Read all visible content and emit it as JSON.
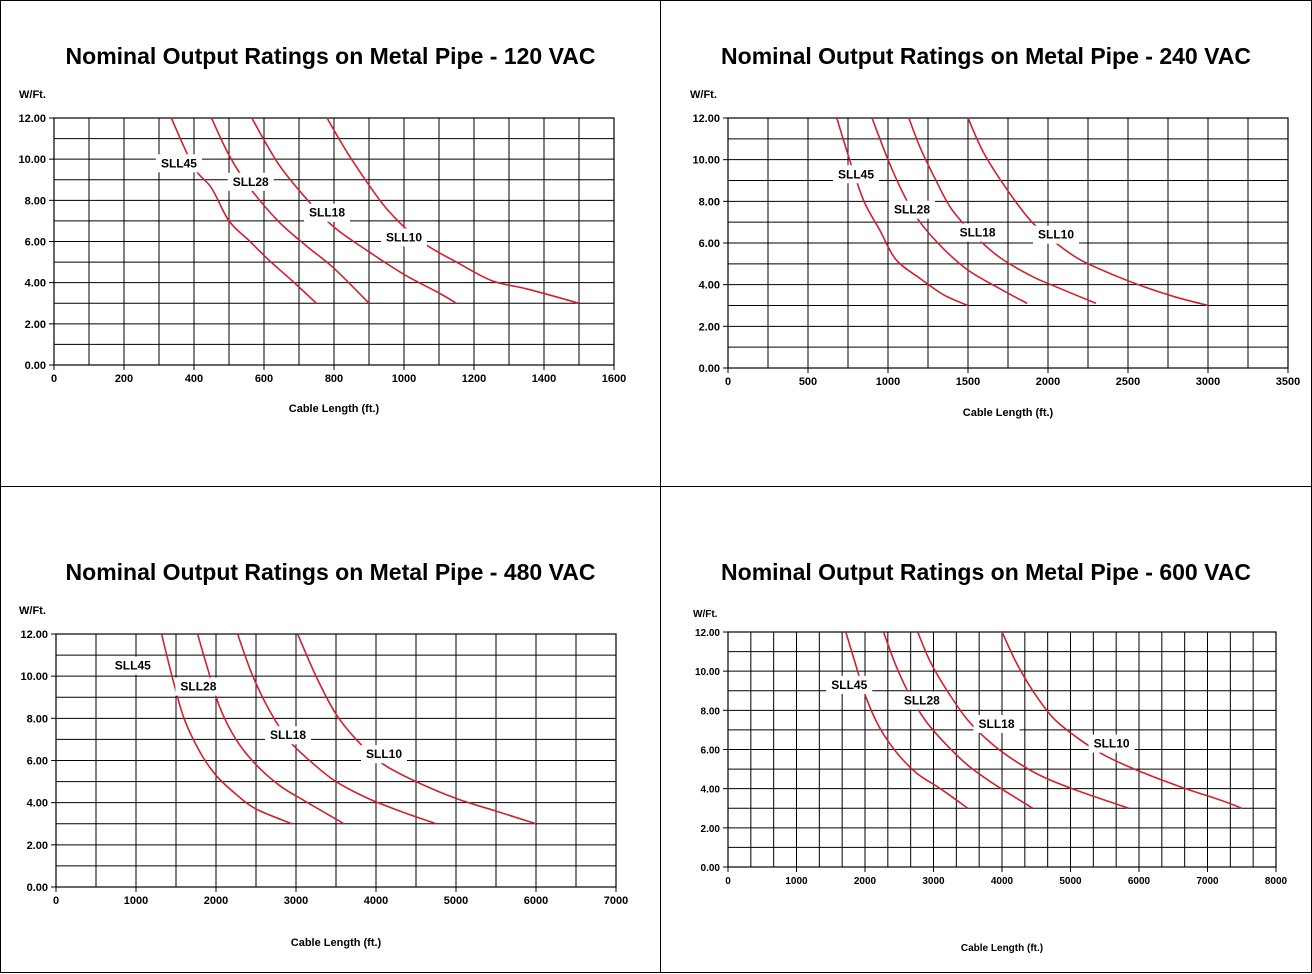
{
  "chart_data": [
    {
      "type": "line",
      "title": "Nominal Output Ratings on Metal Pipe - 120 VAC",
      "ylabel": "W/Ft.",
      "xlabel": "Cable Length (ft.)",
      "xlim": [
        0,
        1600
      ],
      "ylim": [
        0,
        12
      ],
      "x_ticks": [
        "0",
        "200",
        "400",
        "600",
        "800",
        "1000",
        "1200",
        "1400",
        "1600"
      ],
      "y_ticks": [
        "0.00",
        "2.00",
        "4.00",
        "6.00",
        "8.00",
        "10.00",
        "12.00"
      ],
      "grid": true,
      "line_color": "#d12030",
      "series": [
        {
          "name": "SLL45",
          "x": [
            335,
            400,
            450,
            500,
            560,
            620,
            680,
            750
          ],
          "y": [
            12.0,
            9.6,
            8.6,
            7.0,
            6.0,
            5.0,
            4.1,
            3.0
          ],
          "label_at": [
            357,
            9.8
          ]
        },
        {
          "name": "SLL28",
          "x": [
            450,
            500,
            560,
            640,
            720,
            800,
            900
          ],
          "y": [
            12.0,
            10.2,
            8.6,
            7.0,
            5.8,
            4.7,
            3.0
          ],
          "label_at": [
            562,
            8.9
          ]
        },
        {
          "name": "SLL18",
          "x": [
            565,
            640,
            720,
            800,
            900,
            1000,
            1100,
            1150
          ],
          "y": [
            12.0,
            9.8,
            8.1,
            6.7,
            5.5,
            4.4,
            3.5,
            3.0
          ],
          "label_at": [
            780,
            7.4
          ]
        },
        {
          "name": "SLL10",
          "x": [
            780,
            850,
            950,
            1050,
            1150,
            1250,
            1350,
            1500
          ],
          "y": [
            12.0,
            10.0,
            7.6,
            6.0,
            5.0,
            4.1,
            3.7,
            3.0
          ],
          "label_at": [
            1000,
            6.2
          ]
        }
      ]
    },
    {
      "type": "line",
      "title": "Nominal Output Ratings on Metal Pipe - 240 VAC",
      "ylabel": "W/Ft.",
      "xlabel": "Cable Length (ft.)",
      "xlim": [
        0,
        3500
      ],
      "ylim": [
        0,
        12
      ],
      "x_ticks": [
        "0",
        "500",
        "1000",
        "1500",
        "2000",
        "2500",
        "3000",
        "3500"
      ],
      "y_ticks": [
        "0.00",
        "2.00",
        "4.00",
        "6.00",
        "8.00",
        "10.00",
        "12.00"
      ],
      "grid": true,
      "line_color": "#d12030",
      "series": [
        {
          "name": "SLL45",
          "x": [
            680,
            760,
            850,
            950,
            1050,
            1200,
            1350,
            1500
          ],
          "y": [
            12.0,
            10.0,
            8.0,
            6.6,
            5.2,
            4.3,
            3.5,
            3.0
          ],
          "label_at": [
            800,
            9.3
          ]
        },
        {
          "name": "SLL28",
          "x": [
            900,
            1000,
            1100,
            1200,
            1350,
            1500,
            1700,
            1870
          ],
          "y": [
            12.0,
            10.0,
            8.3,
            7.0,
            5.7,
            4.7,
            3.8,
            3.1
          ],
          "label_at": [
            1150,
            7.6
          ]
        },
        {
          "name": "SLL18",
          "x": [
            1130,
            1200,
            1300,
            1400,
            1550,
            1700,
            1900,
            2050,
            2300
          ],
          "y": [
            12.0,
            10.6,
            9.0,
            7.6,
            6.3,
            5.3,
            4.4,
            3.9,
            3.1
          ],
          "label_at": [
            1560,
            6.5
          ]
        },
        {
          "name": "SLL10",
          "x": [
            1500,
            1600,
            1750,
            1900,
            2050,
            2200,
            2400,
            2600,
            2800,
            3000
          ],
          "y": [
            12.0,
            10.3,
            8.5,
            7.0,
            6.0,
            5.2,
            4.5,
            3.9,
            3.4,
            3.0
          ],
          "label_at": [
            2050,
            6.4
          ]
        }
      ]
    },
    {
      "type": "line",
      "title": "Nominal Output Ratings on Metal Pipe - 480 VAC",
      "ylabel": "W/Ft.",
      "xlabel": "Cable Length (ft.)",
      "xlim": [
        0,
        7000
      ],
      "ylim": [
        0,
        12
      ],
      "x_ticks": [
        "0",
        "1000",
        "2000",
        "3000",
        "4000",
        "5000",
        "6000",
        "7000"
      ],
      "y_ticks": [
        "0.00",
        "2.00",
        "4.00",
        "6.00",
        "8.00",
        "10.00",
        "12.00"
      ],
      "grid": true,
      "line_color": "#d12030",
      "series": [
        {
          "name": "SLL45",
          "x": [
            1320,
            1450,
            1600,
            1800,
            2000,
            2250,
            2500,
            2950
          ],
          "y": [
            12.0,
            10.0,
            8.0,
            6.4,
            5.3,
            4.4,
            3.7,
            3.0
          ],
          "label_at": [
            960,
            10.5
          ]
        },
        {
          "name": "SLL28",
          "x": [
            1770,
            1900,
            2050,
            2250,
            2500,
            2800,
            3100,
            3600
          ],
          "y": [
            12.0,
            10.3,
            8.5,
            7.0,
            5.8,
            4.8,
            4.1,
            3.0
          ],
          "label_at": [
            1780,
            9.5
          ]
        },
        {
          "name": "SLL18",
          "x": [
            2270,
            2450,
            2650,
            2900,
            3200,
            3500,
            3900,
            4300,
            4750
          ],
          "y": [
            12.0,
            10.1,
            8.5,
            7.0,
            5.9,
            5.0,
            4.2,
            3.6,
            3.0
          ],
          "label_at": [
            2900,
            7.2
          ]
        },
        {
          "name": "SLL10",
          "x": [
            3020,
            3250,
            3500,
            3800,
            4100,
            4500,
            5000,
            5500,
            6000
          ],
          "y": [
            12.0,
            10.0,
            8.2,
            6.8,
            5.8,
            5.0,
            4.2,
            3.6,
            3.0
          ],
          "label_at": [
            4100,
            6.3
          ]
        }
      ]
    },
    {
      "type": "line",
      "title": "Nominal Output Ratings on Metal Pipe - 600 VAC",
      "ylabel": "W/Ft.",
      "xlabel": "Cable Length (ft.)",
      "xlim": [
        0,
        8000
      ],
      "ylim": [
        0,
        12
      ],
      "x_ticks": [
        "0",
        "1000",
        "2000",
        "3000",
        "4000",
        "5000",
        "6000",
        "7000",
        "8000"
      ],
      "y_ticks": [
        "0.00",
        "2.00",
        "4.00",
        "6.00",
        "8.00",
        "10.00",
        "12.00"
      ],
      "grid": true,
      "line_color": "#d12030",
      "series": [
        {
          "name": "SLL45",
          "x": [
            1720,
            1850,
            2000,
            2200,
            2450,
            2750,
            3100,
            3500
          ],
          "y": [
            12.0,
            10.5,
            8.8,
            7.2,
            5.9,
            4.8,
            4.0,
            3.0
          ],
          "label_at": [
            1770,
            9.3
          ]
        },
        {
          "name": "SLL28",
          "x": [
            2270,
            2450,
            2650,
            2900,
            3200,
            3500,
            3900,
            4450
          ],
          "y": [
            12.0,
            10.3,
            8.8,
            7.4,
            6.2,
            5.2,
            4.2,
            3.0
          ],
          "label_at": [
            2830,
            8.5
          ]
        },
        {
          "name": "SLL18",
          "x": [
            2770,
            2950,
            3200,
            3500,
            3850,
            4200,
            4600,
            5100,
            5850
          ],
          "y": [
            12.0,
            10.5,
            9.0,
            7.5,
            6.3,
            5.4,
            4.6,
            3.9,
            3.0
          ],
          "label_at": [
            3920,
            7.3
          ]
        },
        {
          "name": "SLL10",
          "x": [
            4000,
            4200,
            4450,
            4750,
            5100,
            5500,
            6000,
            6600,
            7200,
            7500
          ],
          "y": [
            12.0,
            10.5,
            9.0,
            7.6,
            6.6,
            5.7,
            4.9,
            4.1,
            3.4,
            3.0
          ],
          "label_at": [
            5600,
            6.3
          ]
        }
      ]
    }
  ]
}
